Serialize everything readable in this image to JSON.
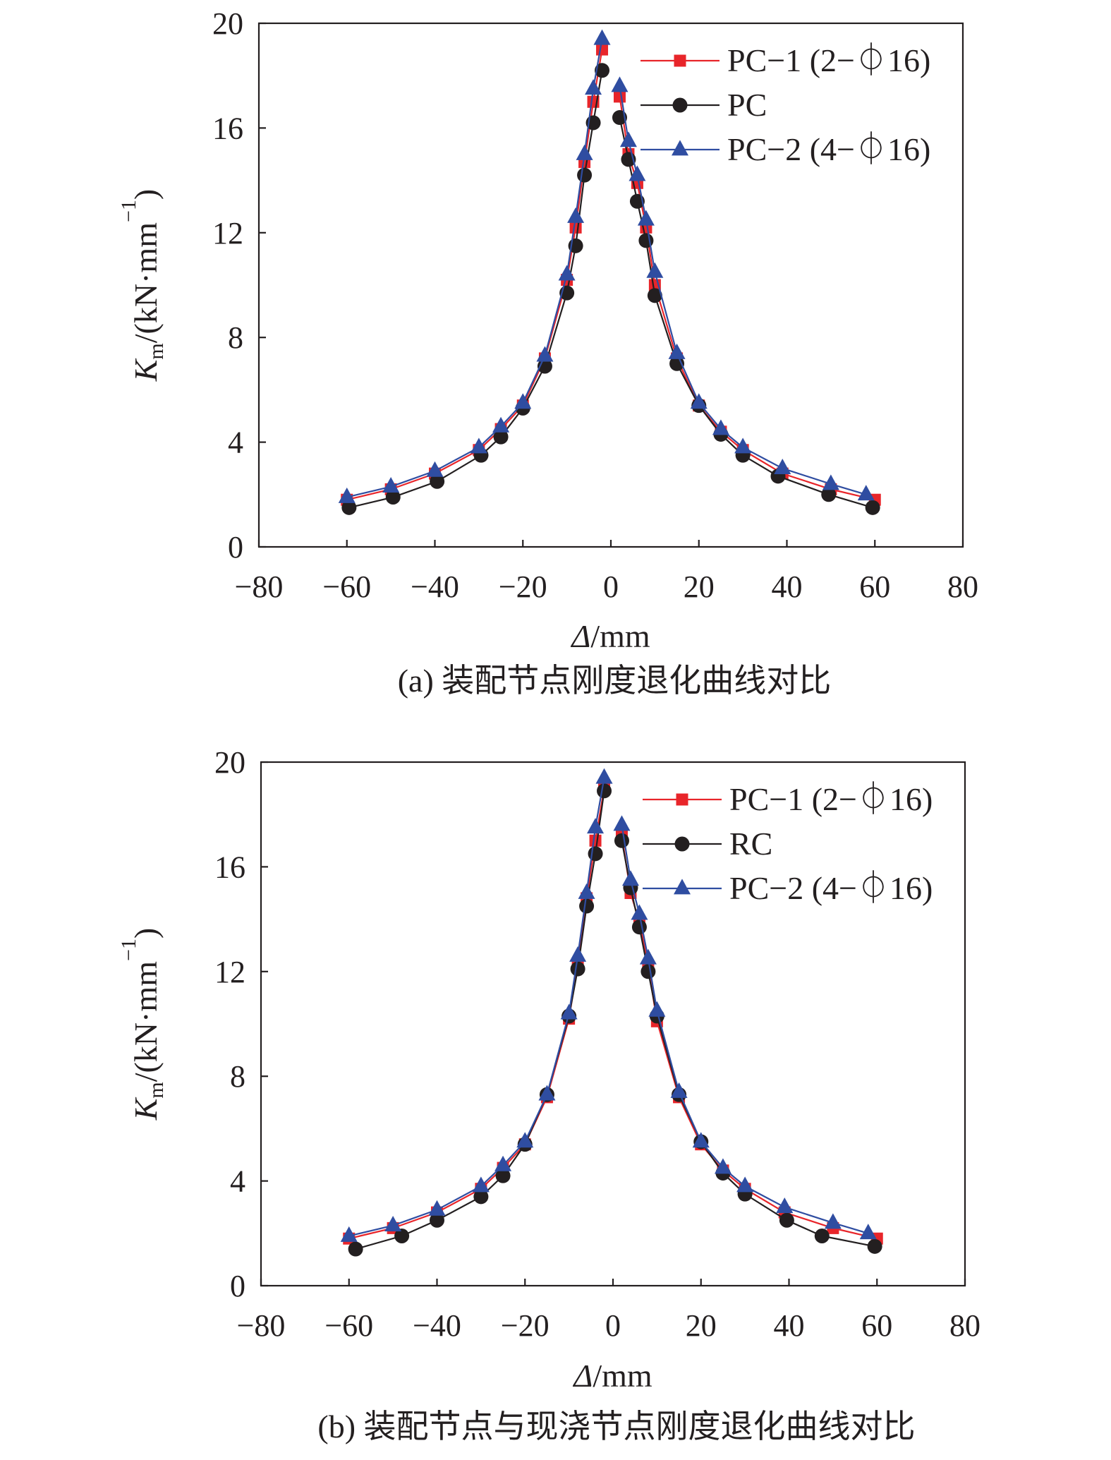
{
  "chart_data": [
    {
      "type": "line",
      "caption": "(a) 装配节点刚度退化曲线对比",
      "xlabel": "Δ/mm",
      "ylabel_main": "K",
      "ylabel_sub": "m",
      "ylabel_rest": "/(kN·mm",
      "ylabel_sup": "−1",
      "ylabel_close": ")",
      "xlim": [
        -80,
        80
      ],
      "ylim": [
        0,
        20
      ],
      "xticks": [
        -80,
        -60,
        -40,
        -20,
        0,
        20,
        40,
        60,
        80
      ],
      "yticks": [
        0,
        4,
        8,
        12,
        16,
        20
      ],
      "xtick_labels": [
        "−80",
        "−60",
        "−40",
        "−20",
        "0",
        "20",
        "40",
        "60",
        "80"
      ],
      "ytick_labels": [
        "0",
        "4",
        "8",
        "12",
        "16",
        "20"
      ],
      "legend_position": "top-right",
      "series": [
        {
          "name": "PC−1 (2−⏀16)",
          "color": "#e8252a",
          "marker": "square",
          "x": [
            -60,
            -50,
            -40,
            -30,
            -25,
            -20,
            -15,
            -10,
            -8,
            -6,
            -4,
            -2,
            2,
            4,
            6,
            8,
            10,
            15,
            20,
            25,
            30,
            39,
            50,
            60
          ],
          "y": [
            1.8,
            2.2,
            2.8,
            3.7,
            4.5,
            5.4,
            7.2,
            10.2,
            12.2,
            14.7,
            17.0,
            19.0,
            17.2,
            15.0,
            13.9,
            12.2,
            10.0,
            7.2,
            5.4,
            4.4,
            3.7,
            2.8,
            2.2,
            1.8
          ]
        },
        {
          "name": "PC",
          "color": "#231f20",
          "marker": "circle",
          "x": [
            -59.5,
            -49.5,
            -39.5,
            -29.5,
            -25,
            -20,
            -15,
            -10,
            -8,
            -6,
            -4,
            -2,
            2,
            4,
            6,
            8,
            10,
            15,
            20,
            25,
            30,
            38,
            49.5,
            59.5
          ],
          "y": [
            1.5,
            1.9,
            2.5,
            3.5,
            4.2,
            5.3,
            6.9,
            9.7,
            11.5,
            14.2,
            16.2,
            18.2,
            16.4,
            14.8,
            13.2,
            11.7,
            9.6,
            7.0,
            5.4,
            4.3,
            3.5,
            2.7,
            2.0,
            1.5
          ]
        },
        {
          "name": "PC−2 (4−⏀16)",
          "color": "#2f4da1",
          "marker": "triangle",
          "x": [
            -60,
            -50,
            -40,
            -30,
            -25,
            -20,
            -15,
            -10,
            -8,
            -6,
            -4,
            -2,
            2,
            4,
            6,
            8,
            10,
            15,
            20,
            25,
            30,
            39,
            50,
            58
          ],
          "y": [
            1.9,
            2.3,
            2.9,
            3.8,
            4.6,
            5.5,
            7.3,
            10.4,
            12.6,
            15.0,
            17.5,
            19.4,
            17.6,
            15.5,
            14.2,
            12.5,
            10.5,
            7.4,
            5.5,
            4.5,
            3.8,
            3.0,
            2.4,
            2.0
          ]
        }
      ]
    },
    {
      "type": "line",
      "caption": "(b) 装配节点与现浇节点刚度退化曲线对比",
      "xlabel": "Δ/mm",
      "ylabel_main": "K",
      "ylabel_sub": "m",
      "ylabel_rest": "/(kN·mm",
      "ylabel_sup": "−1",
      "ylabel_close": ")",
      "xlim": [
        -80,
        80
      ],
      "ylim": [
        0,
        20
      ],
      "xticks": [
        -80,
        -60,
        -40,
        -20,
        0,
        20,
        40,
        60,
        80
      ],
      "yticks": [
        0,
        4,
        8,
        12,
        16,
        20
      ],
      "xtick_labels": [
        "−80",
        "−60",
        "−40",
        "−20",
        "0",
        "20",
        "40",
        "60",
        "80"
      ],
      "ytick_labels": [
        "0",
        "4",
        "8",
        "12",
        "16",
        "20"
      ],
      "legend_position": "top-right",
      "series": [
        {
          "name": "PC−1 (2−⏀16)",
          "color": "#e8252a",
          "marker": "square",
          "x": [
            -60,
            -50,
            -40,
            -30,
            -25,
            -20,
            -15,
            -10,
            -8,
            -6,
            -4,
            -2,
            2,
            4,
            6,
            8,
            10,
            15,
            20,
            25,
            30,
            39,
            50,
            60
          ],
          "y": [
            1.8,
            2.2,
            2.8,
            3.7,
            4.5,
            5.4,
            7.2,
            10.2,
            12.3,
            14.8,
            17.0,
            19.0,
            17.2,
            15.0,
            13.9,
            12.2,
            10.1,
            7.2,
            5.4,
            4.4,
            3.7,
            2.8,
            2.2,
            1.8
          ]
        },
        {
          "name": "RC",
          "color": "#231f20",
          "marker": "circle",
          "x": [
            -58.5,
            -48,
            -40,
            -30,
            -25,
            -20,
            -15,
            -10,
            -8,
            -6,
            -4,
            -2,
            2,
            4,
            6,
            8,
            10,
            15,
            20,
            25,
            30,
            39.5,
            47.5,
            59.5
          ],
          "y": [
            1.4,
            1.9,
            2.5,
            3.4,
            4.2,
            5.4,
            7.3,
            10.3,
            12.1,
            14.5,
            16.5,
            18.9,
            17.0,
            15.2,
            13.7,
            12.0,
            10.3,
            7.3,
            5.5,
            4.3,
            3.5,
            2.5,
            1.9,
            1.5
          ]
        },
        {
          "name": "PC−2 (4−⏀16)",
          "color": "#2f4da1",
          "marker": "triangle",
          "x": [
            -60,
            -50,
            -40,
            -30,
            -25,
            -20,
            -15,
            -10,
            -8,
            -6,
            -4,
            -2,
            2,
            4,
            6,
            8,
            10,
            15,
            20,
            25,
            30,
            39,
            50,
            58
          ],
          "y": [
            1.9,
            2.3,
            2.9,
            3.8,
            4.6,
            5.5,
            7.3,
            10.4,
            12.6,
            15.0,
            17.5,
            19.4,
            17.6,
            15.5,
            14.2,
            12.5,
            10.5,
            7.4,
            5.5,
            4.5,
            3.8,
            3.0,
            2.4,
            2.0
          ]
        }
      ]
    }
  ]
}
